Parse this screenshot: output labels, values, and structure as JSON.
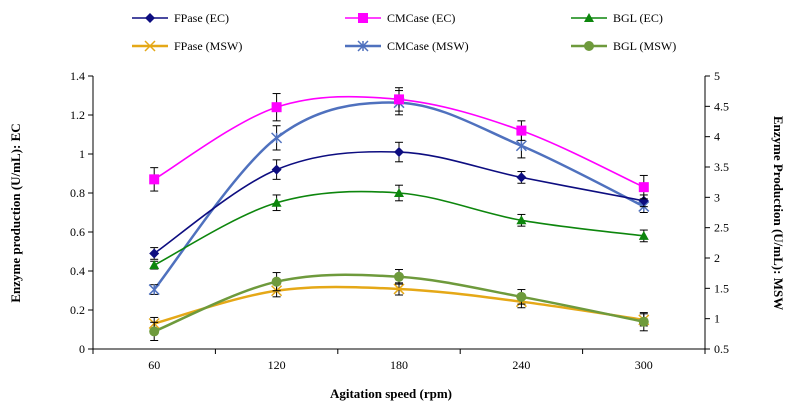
{
  "chart_data": {
    "type": "line",
    "xlabel": "Agitation speed (rpm)",
    "ylabel": "Enzyme production (U/mL): EC",
    "y2label": "Enzyme Production (U/mL): MSW",
    "categories": [
      "60",
      "120",
      "180",
      "240",
      "300"
    ],
    "ylim": [
      0,
      1.4
    ],
    "yticks": [
      "0",
      "0.2",
      "0.4",
      "0.6",
      "0.8",
      "1",
      "1.2",
      "1.4"
    ],
    "y2lim": [
      0.5,
      5
    ],
    "y2ticks": [
      "0.5",
      "1",
      "1.5",
      "2",
      "2.5",
      "3",
      "3.5",
      "4",
      "4.5",
      "5"
    ],
    "grid": false,
    "legend_position": "top",
    "series": [
      {
        "name": "FPase (EC)",
        "axis": "left",
        "color": "#0d0d80",
        "marker": "diamond",
        "values": [
          0.49,
          0.92,
          1.01,
          0.88,
          0.76
        ],
        "errors": [
          0.03,
          0.05,
          0.05,
          0.03,
          0.03
        ]
      },
      {
        "name": "CMCase (EC)",
        "axis": "left",
        "color": "#ff00ff",
        "marker": "square",
        "values": [
          0.87,
          1.24,
          1.28,
          1.12,
          0.83
        ],
        "errors": [
          0.06,
          0.07,
          0.06,
          0.05,
          0.06
        ]
      },
      {
        "name": "BGL (EC)",
        "axis": "left",
        "color": "#0d860d",
        "marker": "triangle",
        "values": [
          0.43,
          0.75,
          0.8,
          0.66,
          0.58
        ],
        "errors": [
          0.02,
          0.04,
          0.04,
          0.03,
          0.03
        ]
      },
      {
        "name": "FPase (MSW)",
        "axis": "right",
        "color": "#e5a817",
        "marker": "x",
        "values": [
          0.92,
          1.46,
          1.49,
          1.28,
          0.98
        ],
        "errors": [
          0.1,
          0.1,
          0.1,
          0.1,
          0.1
        ]
      },
      {
        "name": "CMCase (MSW)",
        "axis": "right",
        "color": "#4f71be",
        "marker": "star",
        "values": [
          1.48,
          3.98,
          4.56,
          3.85,
          2.85
        ],
        "errors": [
          0.08,
          0.2,
          0.2,
          0.2,
          0.1
        ]
      },
      {
        "name": "BGL (MSW)",
        "axis": "right",
        "color": "#6e9a3c",
        "marker": "circle",
        "values": [
          0.79,
          1.61,
          1.69,
          1.36,
          0.95
        ],
        "errors": [
          0.15,
          0.15,
          0.12,
          0.12,
          0.15
        ]
      }
    ]
  }
}
